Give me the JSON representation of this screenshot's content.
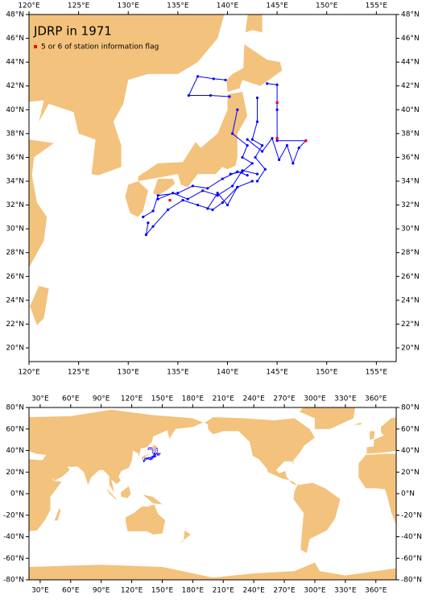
{
  "title": "JDRP in 1971",
  "legend": {
    "label": "5 or 6 of station information flag",
    "color": "#ff0000"
  },
  "track_color": "#0000ff",
  "regional_map": {
    "xlim": [
      120,
      157
    ],
    "ylim": [
      18.85,
      48
    ],
    "xticks": [
      {
        "value": 120,
        "label": "120°E"
      },
      {
        "value": 125,
        "label": "125°E"
      },
      {
        "value": 130,
        "label": "130°E"
      },
      {
        "value": 135,
        "label": "135°E"
      },
      {
        "value": 140,
        "label": "140°E"
      },
      {
        "value": 145,
        "label": "145°E"
      },
      {
        "value": 150,
        "label": "150°E"
      },
      {
        "value": 155,
        "label": "155°E"
      }
    ],
    "yticks": [
      {
        "value": 20,
        "label": "20°N"
      },
      {
        "value": 22,
        "label": "22°N"
      },
      {
        "value": 24,
        "label": "24°N"
      },
      {
        "value": 26,
        "label": "26°N"
      },
      {
        "value": 28,
        "label": "28°N"
      },
      {
        "value": 30,
        "label": "30°N"
      },
      {
        "value": 32,
        "label": "32°N"
      },
      {
        "value": 34,
        "label": "34°N"
      },
      {
        "value": 36,
        "label": "36°N"
      },
      {
        "value": 38,
        "label": "38°N"
      },
      {
        "value": 40,
        "label": "40°N"
      },
      {
        "value": 42,
        "label": "42°N"
      },
      {
        "value": 44,
        "label": "44°N"
      },
      {
        "value": 46,
        "label": "46°N"
      },
      {
        "value": 48,
        "label": "48°N"
      }
    ]
  },
  "world_map": {
    "xlim": [
      19,
      380
    ],
    "ylim": [
      -80,
      80
    ],
    "xticks": [
      {
        "value": 30,
        "label": "30°E"
      },
      {
        "value": 60,
        "label": "60°E"
      },
      {
        "value": 90,
        "label": "90°E"
      },
      {
        "value": 120,
        "label": "120°E"
      },
      {
        "value": 150,
        "label": "150°E"
      },
      {
        "value": 180,
        "label": "180°E"
      },
      {
        "value": 210,
        "label": "210°E"
      },
      {
        "value": 240,
        "label": "240°E"
      },
      {
        "value": 270,
        "label": "270°E"
      },
      {
        "value": 300,
        "label": "300°E"
      },
      {
        "value": 330,
        "label": "330°E"
      },
      {
        "value": 360,
        "label": "360°E"
      }
    ],
    "yticks": [
      {
        "value": -80,
        "label": "-80°N"
      },
      {
        "value": -60,
        "label": "-60°N"
      },
      {
        "value": -40,
        "label": "-40°N"
      },
      {
        "value": -20,
        "label": "-20°N"
      },
      {
        "value": 0,
        "label": "0°N"
      },
      {
        "value": 20,
        "label": "20°N"
      },
      {
        "value": 40,
        "label": "40°N"
      },
      {
        "value": 60,
        "label": "60°N"
      },
      {
        "value": 80,
        "label": "80°N"
      }
    ]
  },
  "tracks": [
    {
      "lon": [
        136.1,
        137.0,
        138.6,
        139.8
      ],
      "lat": [
        41.2,
        42.8,
        42.6,
        42.5
      ]
    },
    {
      "lon": [
        136.1,
        138.3,
        140.2
      ],
      "lat": [
        41.2,
        41.2,
        41.1
      ]
    },
    {
      "lon": [
        144.0,
        145.0,
        145.0,
        145.0,
        147.9
      ],
      "lat": [
        42.2,
        42.1,
        40.0,
        37.4,
        37.4
      ]
    },
    {
      "lon": [
        143.0,
        143.0,
        142.5,
        143.5,
        142.8,
        143.8,
        143.0
      ],
      "lat": [
        41.0,
        39.0,
        37.5,
        37.0,
        36.0,
        35.0,
        34.0
      ]
    },
    {
      "lon": [
        142.0,
        143.5,
        144.5,
        145.2,
        146.0,
        146.6,
        147.2,
        147.9
      ],
      "lat": [
        37.5,
        36.5,
        37.6,
        35.8,
        37.0,
        35.5,
        36.8,
        37.4
      ]
    },
    {
      "lon": [
        141.0,
        140.5,
        142.0,
        141.5,
        142.5,
        141.5,
        140.3
      ],
      "lat": [
        40.0,
        38.0,
        37.0,
        36.0,
        35.5,
        34.8,
        34.6
      ]
    },
    {
      "lon": [
        131.5,
        132.5,
        133.0,
        135.0,
        136.5,
        138.0,
        139.5,
        141.0,
        142.0
      ],
      "lat": [
        31.0,
        31.5,
        32.8,
        33.0,
        33.6,
        33.4,
        34.2,
        34.8,
        34.5
      ]
    },
    {
      "lon": [
        132.0,
        131.8,
        132.5,
        134.0,
        135.5,
        137.0,
        138.5,
        139.5,
        141.0,
        142.5
      ],
      "lat": [
        30.5,
        29.5,
        30.2,
        31.6,
        32.4,
        32.0,
        31.6,
        32.2,
        33.5,
        34.0
      ]
    },
    {
      "lon": [
        133.0,
        134.5,
        136.0,
        137.5,
        139.0,
        140.5,
        141.5,
        143.0
      ],
      "lat": [
        32.5,
        33.0,
        32.5,
        33.2,
        32.8,
        33.6,
        34.9,
        34.6
      ]
    },
    {
      "lon": [
        138.0,
        139.0,
        140.0,
        141.0
      ],
      "lat": [
        31.7,
        33.0,
        32.0,
        33.5
      ]
    }
  ],
  "flagged": {
    "lon": [
      145.0,
      145.0,
      147.9,
      134.2
    ],
    "lat": [
      40.6,
      37.6,
      37.4,
      32.4
    ]
  }
}
